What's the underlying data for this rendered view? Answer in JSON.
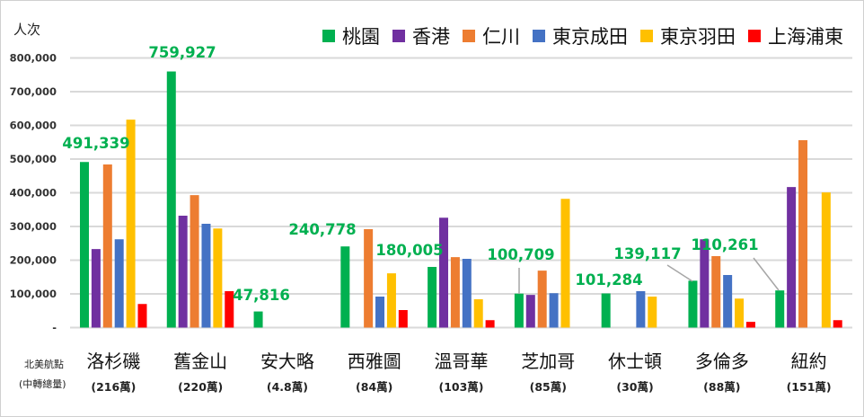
{
  "chart_data": {
    "type": "bar",
    "ylabel": "人次",
    "ylim": [
      0,
      800000
    ],
    "yticks": [
      "-",
      "100,000",
      "200,000",
      "300,000",
      "400,000",
      "500,000",
      "600,000",
      "700,000",
      "800,000"
    ],
    "grid": true,
    "legend_position": "top-right",
    "xlabel_lines": [
      "北美航點",
      "(中轉總量)"
    ],
    "categories": [
      "洛杉磯",
      "舊金山",
      "安大略",
      "西雅圖",
      "溫哥華",
      "芝加哥",
      "休士頓",
      "多倫多",
      "紐約"
    ],
    "category_sublabels": [
      "(216萬)",
      "(220萬)",
      "(4.8萬)",
      "(84萬)",
      "(103萬)",
      "(85萬)",
      "(30萬)",
      "(88萬)",
      "(151萬)"
    ],
    "series": [
      {
        "name": "桃園",
        "color": "#00B050",
        "values": [
          491339,
          759927,
          47816,
          240778,
          180005,
          100709,
          101284,
          139117,
          110261
        ]
      },
      {
        "name": "香港",
        "color": "#7030A0",
        "values": [
          233000,
          332000,
          null,
          null,
          326000,
          97000,
          null,
          262000,
          417000
        ]
      },
      {
        "name": "仁川",
        "color": "#ED7D31",
        "values": [
          484000,
          393000,
          null,
          292000,
          209000,
          169000,
          null,
          212000,
          556000
        ]
      },
      {
        "name": "東京成田",
        "color": "#4472C4",
        "values": [
          262000,
          308000,
          null,
          92000,
          204000,
          102000,
          108000,
          156000,
          null
        ]
      },
      {
        "name": "東京羽田",
        "color": "#FFC000",
        "values": [
          617000,
          294000,
          null,
          161000,
          84000,
          382000,
          92000,
          86000,
          401000
        ]
      },
      {
        "name": "上海浦東",
        "color": "#FF0000",
        "values": [
          70000,
          108000,
          null,
          52000,
          22000,
          null,
          null,
          17000,
          22000
        ]
      }
    ],
    "data_labels": [
      "491,339",
      "759,927",
      "47,816",
      "240,778",
      "180,005",
      "100,709",
      "101,284",
      "139,117",
      "110,261"
    ],
    "data_label_color": "#00B050"
  }
}
